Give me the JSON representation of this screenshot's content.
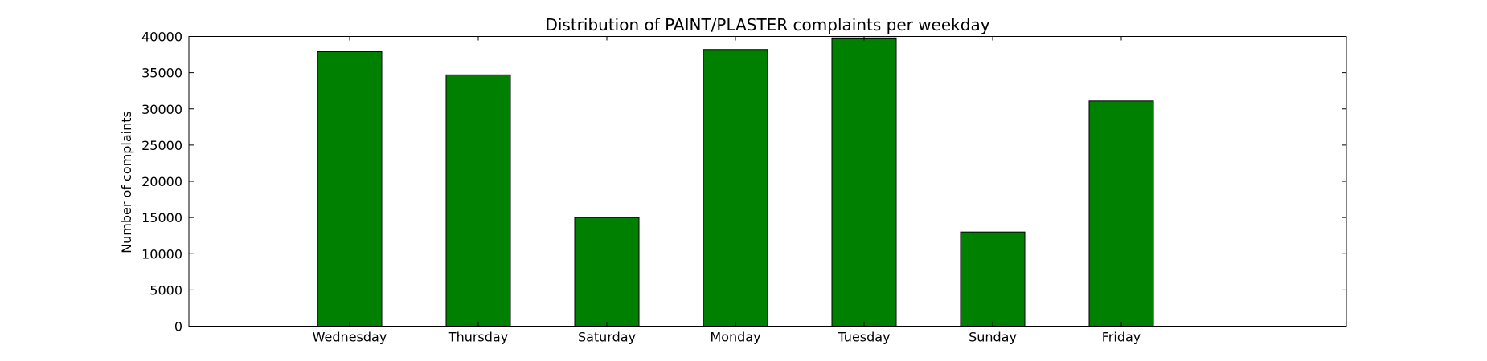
{
  "chart_data": {
    "type": "bar",
    "title": "Distribution of  PAINT/PLASTER complaints per weekday",
    "xlabel": "",
    "ylabel": "Number of complaints",
    "categories": [
      "Wednesday",
      "Thursday",
      "Saturday",
      "Monday",
      "Tuesday",
      "Sunday",
      "Friday"
    ],
    "values": [
      37900,
      34700,
      15000,
      38200,
      39800,
      13000,
      31100
    ],
    "ylim": [
      0,
      40000
    ],
    "yticks": [
      0,
      5000,
      10000,
      15000,
      20000,
      25000,
      30000,
      35000,
      40000
    ],
    "xlim": [
      -1.25,
      7.75
    ],
    "grid": false,
    "legend": "none",
    "bar_color": "#008000",
    "edge_color": "#000000"
  }
}
